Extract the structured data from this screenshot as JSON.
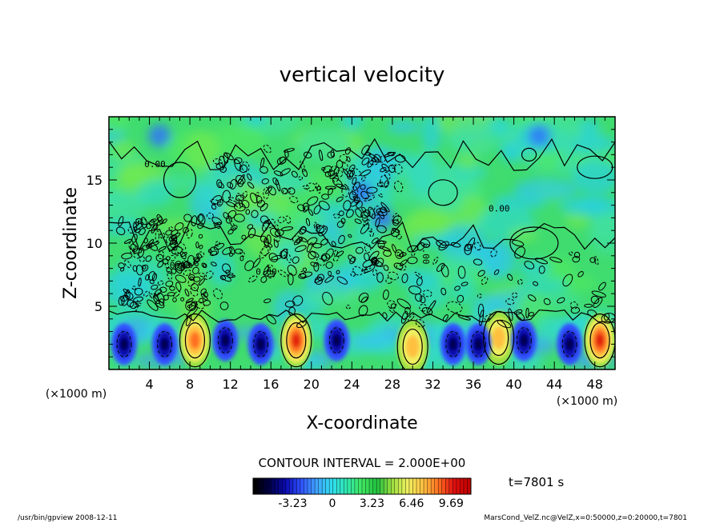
{
  "chart_data": {
    "type": "heatmap",
    "title": "vertical velocity",
    "xlabel": "X-coordinate",
    "ylabel": "Z-coordinate",
    "x_unit": "(×1000 m)",
    "y_unit": "(×1000 m)",
    "xlim": [
      0,
      50
    ],
    "ylim": [
      0,
      20
    ],
    "x_ticks": [
      4,
      8,
      12,
      16,
      20,
      24,
      28,
      32,
      36,
      40,
      44,
      48
    ],
    "y_ticks": [
      5,
      10,
      15
    ],
    "contour_interval_text": "CONTOUR INTERVAL = 2.000E+00",
    "contour_label": "0.00",
    "time_text": "t=7801 s",
    "colorbar": {
      "ticks": [
        "-3.23",
        "0",
        "3.23",
        "6.46",
        "9.69"
      ],
      "range": [
        -6.46,
        11.3
      ],
      "colors": [
        "#000000",
        "#00004a",
        "#0a0ab0",
        "#3050ff",
        "#40a0ff",
        "#30dcf0",
        "#30e8b0",
        "#40e860",
        "#20c040",
        "#a0e040",
        "#f0f060",
        "#ffc040",
        "#ff7020",
        "#e01010",
        "#c00000"
      ]
    },
    "updrafts": [
      {
        "x": 8.5,
        "z": 2.3,
        "peak": 8.0
      },
      {
        "x": 18.5,
        "z": 2.3,
        "peak": 10.0
      },
      {
        "x": 30.0,
        "z": 1.8,
        "peak": 6.5
      },
      {
        "x": 38.5,
        "z": 2.5,
        "peak": 5.0
      },
      {
        "x": 48.5,
        "z": 2.3,
        "peak": 9.0
      }
    ],
    "downdrafts": [
      {
        "x": 1.5,
        "z": 2.0,
        "peak": -4.5
      },
      {
        "x": 5.5,
        "z": 2.0,
        "peak": -4.5
      },
      {
        "x": 11.5,
        "z": 2.3,
        "peak": -4.5
      },
      {
        "x": 15.0,
        "z": 2.0,
        "peak": -4.5
      },
      {
        "x": 22.5,
        "z": 2.3,
        "peak": -4.0
      },
      {
        "x": 34.0,
        "z": 2.0,
        "peak": -4.5
      },
      {
        "x": 36.5,
        "z": 2.0,
        "peak": -4.0
      },
      {
        "x": 41.0,
        "z": 2.3,
        "peak": -4.0
      },
      {
        "x": 45.5,
        "z": 2.0,
        "peak": -4.5
      }
    ]
  },
  "footer": {
    "left": "/usr/bin/gpview   2008-12-11",
    "right": "MarsCond_VelZ.nc@VelZ,x=0:50000,z=0:20000,t=7801"
  }
}
